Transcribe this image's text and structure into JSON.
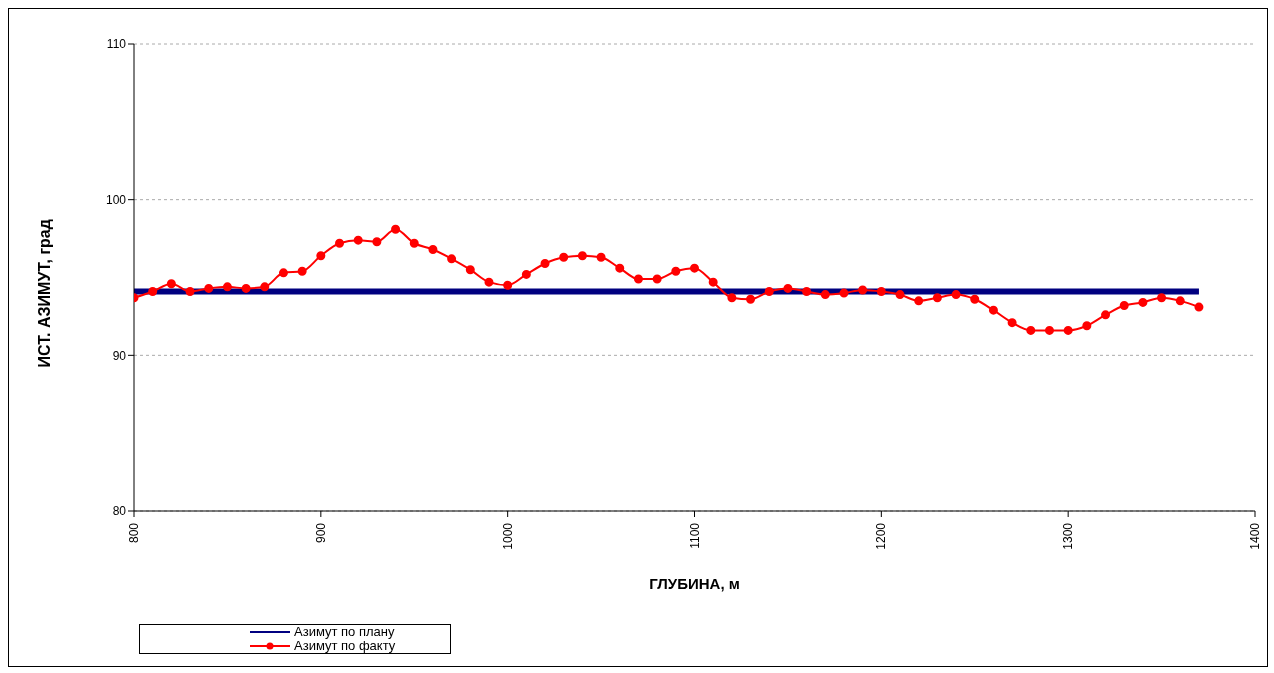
{
  "chart_data": {
    "type": "line",
    "xlabel": "ГЛУБИНА, м",
    "ylabel": "ИСТ. АЗИМУТ, град",
    "xlim": [
      800,
      1400
    ],
    "xticks": [
      800,
      900,
      1000,
      1100,
      1200,
      1300,
      1400
    ],
    "ylim": [
      80,
      110
    ],
    "yticks": [
      80,
      90,
      100,
      110
    ],
    "grid": "y",
    "legend": "bottom left",
    "series": [
      {
        "name": "Азимут по плану",
        "color": "#000080",
        "x": [
          800,
          1370
        ],
        "values": [
          94.1,
          94.1
        ],
        "marker": "none"
      },
      {
        "name": "Азимут по факту",
        "color": "#ff0000",
        "marker": "circle",
        "x": [
          800,
          810,
          820,
          830,
          840,
          850,
          860,
          870,
          880,
          890,
          900,
          910,
          920,
          930,
          940,
          950,
          960,
          970,
          980,
          990,
          1000,
          1010,
          1020,
          1030,
          1040,
          1050,
          1060,
          1070,
          1080,
          1090,
          1100,
          1110,
          1120,
          1130,
          1140,
          1150,
          1160,
          1170,
          1180,
          1190,
          1200,
          1210,
          1220,
          1230,
          1240,
          1250,
          1260,
          1270,
          1280,
          1290,
          1300,
          1310,
          1320,
          1330,
          1340,
          1350,
          1360,
          1370
        ],
        "values": [
          93.7,
          94.1,
          94.6,
          94.1,
          94.3,
          94.4,
          94.3,
          94.4,
          95.3,
          95.4,
          96.4,
          97.2,
          97.4,
          97.3,
          98.1,
          97.2,
          96.8,
          96.2,
          95.5,
          94.7,
          94.5,
          95.2,
          95.9,
          96.3,
          96.4,
          96.3,
          95.6,
          94.9,
          94.9,
          95.4,
          95.6,
          94.7,
          93.7,
          93.6,
          94.1,
          94.3,
          94.1,
          93.9,
          94.0,
          94.2,
          94.1,
          93.9,
          93.5,
          93.7,
          93.9,
          93.6,
          92.9,
          92.1,
          91.6,
          91.6,
          91.6,
          91.9,
          92.6,
          93.2,
          93.4,
          93.7,
          93.5,
          93.1
        ]
      }
    ]
  }
}
